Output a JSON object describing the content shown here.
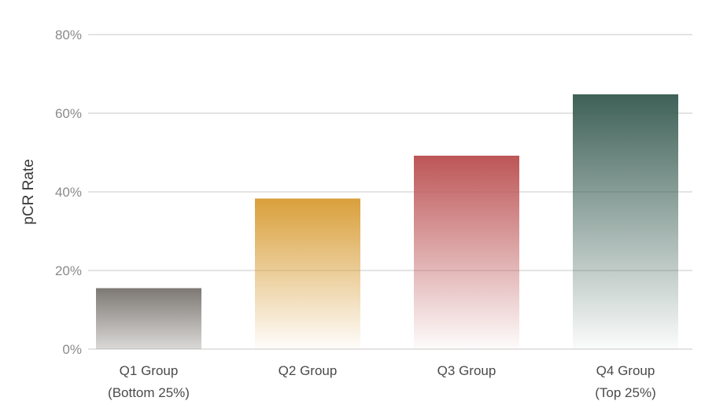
{
  "chart_data": {
    "type": "bar",
    "title": "",
    "xlabel": "",
    "ylabel": "pCR Rate",
    "ylim": [
      0,
      80
    ],
    "y_ticks": [
      0,
      20,
      40,
      60,
      80
    ],
    "y_tick_labels": [
      "0%",
      "20%",
      "40%",
      "60%",
      "80%"
    ],
    "grid": "horizontal",
    "categories": [
      [
        "Q1 Group",
        "(Bottom 25%)"
      ],
      [
        "Q2 Group"
      ],
      [
        "Q3 Group"
      ],
      [
        "Q4 Group",
        "(Top 25%)"
      ]
    ],
    "values": [
      15.5,
      38.3,
      49.2,
      64.8
    ],
    "colors": [
      "#7d7873",
      "#d99f3b",
      "#bd5556",
      "#3e6157"
    ]
  }
}
